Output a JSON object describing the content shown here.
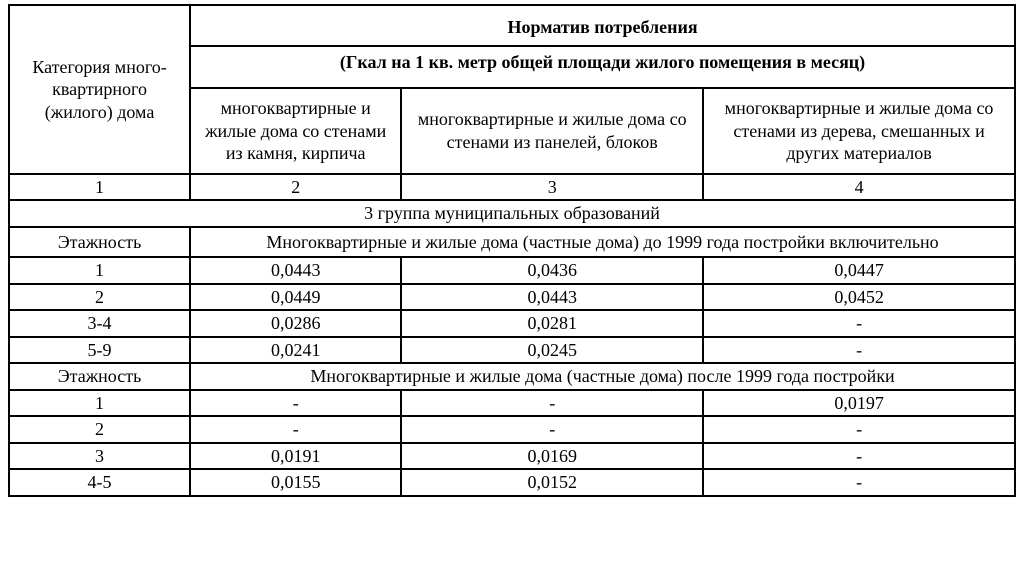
{
  "header": {
    "category_label": "Категория много-квартирного (жилого) дома",
    "main_title": "Норматив потребления",
    "main_subtitle": "(Гкал на 1 кв. метр общей площади жилого помещения в месяц)",
    "sub_cols": {
      "col2": "многоквартирные и жилые дома со стенами из камня, кирпича",
      "col3": "многоквартирные и жилые дома со стенами из панелей, блоков",
      "col4": "многоквартирные и жилые дома со стенами из дерева, смешанных и других материалов"
    },
    "col_nums": {
      "c1": "1",
      "c2": "2",
      "c3": "3",
      "c4": "4"
    }
  },
  "group_title": "3 группа муниципальных образований",
  "floors_label": "Этажность",
  "section1": {
    "title": "Многоквартирные и жилые дома (частные дома) до 1999 года постройки включительно",
    "rows": [
      {
        "k": "1",
        "c2": "0,0443",
        "c3": "0,0436",
        "c4": "0,0447"
      },
      {
        "k": "2",
        "c2": "0,0449",
        "c3": "0,0443",
        "c4": "0,0452"
      },
      {
        "k": "3-4",
        "c2": "0,0286",
        "c3": "0,0281",
        "c4": "-"
      },
      {
        "k": "5-9",
        "c2": "0,0241",
        "c3": "0,0245",
        "c4": "-"
      }
    ]
  },
  "section2": {
    "title": "Многоквартирные и жилые дома (частные дома) после 1999 года постройки",
    "rows": [
      {
        "k": "1",
        "c2": "-",
        "c3": "-",
        "c4": "0,0197"
      },
      {
        "k": "2",
        "c2": "-",
        "c3": "-",
        "c4": "-"
      },
      {
        "k": "3",
        "c2": "0,0191",
        "c3": "0,0169",
        "c4": "-"
      },
      {
        "k": "4-5",
        "c2": "0,0155",
        "c3": "0,0152",
        "c4": "-"
      }
    ]
  },
  "style": {
    "border_color": "#000000",
    "background_color": "#ffffff",
    "font_family": "Times New Roman",
    "base_font_size_pt": 14,
    "header_font_weight": "bold"
  }
}
